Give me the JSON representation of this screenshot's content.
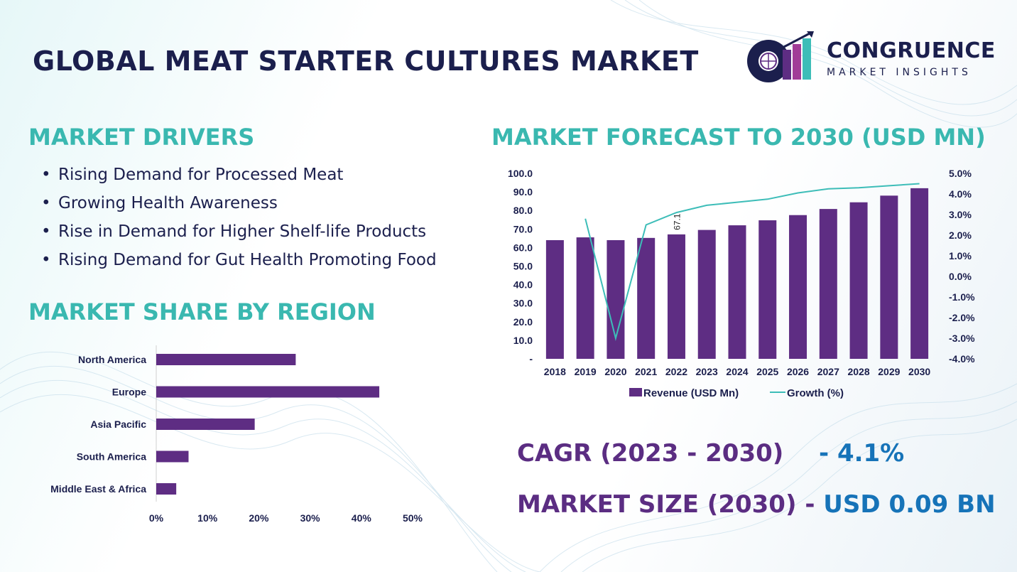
{
  "header": {
    "title": "GLOBAL MEAT STARTER CULTURES MARKET",
    "logo": {
      "name": "CONGRUENCE",
      "tagline": "MARKET INSIGHTS"
    }
  },
  "drivers": {
    "title": "MARKET DRIVERS",
    "items": [
      "Rising Demand for Processed Meat",
      "Growing Health Awareness",
      "Rise in Demand for Higher Shelf-life Products",
      "Rising Demand for Gut Health Promoting Food"
    ]
  },
  "share": {
    "title": "MARKET SHARE BY REGION"
  },
  "forecast": {
    "title": "MARKET FORECAST TO 2030 (USD MN)"
  },
  "kpis": {
    "cagr_label": "CAGR (2023 - 2030)",
    "cagr_value": "- 4.1%",
    "size_label": "MARKET SIZE (2030) -",
    "size_value": "USD 0.09 BN"
  },
  "colors": {
    "bar": "#5e2d83",
    "line": "#3dbdb8",
    "teal_heading": "#3ab8b0",
    "navy": "#1b1f4d",
    "kpi_value": "#1673b8"
  },
  "chart_data": [
    {
      "type": "bar",
      "orientation": "horizontal",
      "categories": [
        "North America",
        "Europe",
        "Asia Pacific",
        "South America",
        "Middle East & Africa"
      ],
      "values": [
        27.2,
        43.5,
        19.2,
        6.3,
        3.9
      ],
      "xticks": [
        "0%",
        "10%",
        "20%",
        "30%",
        "40%",
        "50%"
      ],
      "xlim": [
        0,
        50
      ],
      "grid": false
    },
    {
      "type": "bar+line",
      "categories": [
        "2018",
        "2019",
        "2020",
        "2021",
        "2022",
        "2023",
        "2024",
        "2025",
        "2026",
        "2027",
        "2028",
        "2029",
        "2030"
      ],
      "series": [
        {
          "name": "Revenue (USD Mn)",
          "type": "bar",
          "axis": "left",
          "values": [
            64.0,
            65.5,
            64.0,
            65.2,
            67.1,
            69.5,
            72.0,
            74.7,
            77.5,
            80.8,
            84.4,
            88.0,
            92.0
          ]
        },
        {
          "name": "Growth (%)",
          "type": "line",
          "axis": "right",
          "values": [
            null,
            2.8,
            -3.0,
            2.5,
            3.1,
            3.45,
            3.6,
            3.75,
            4.05,
            4.25,
            4.3,
            4.4,
            4.5
          ]
        }
      ],
      "data_labels": [
        {
          "category": "2022",
          "text": "67.1"
        }
      ],
      "yticks_left": [
        "-",
        "10.0",
        "20.0",
        "30.0",
        "40.0",
        "50.0",
        "60.0",
        "70.0",
        "80.0",
        "90.0",
        "100.0"
      ],
      "yticks_right": [
        "-4.0%",
        "-3.0%",
        "-2.0%",
        "-1.0%",
        "0.0%",
        "1.0%",
        "2.0%",
        "3.0%",
        "4.0%",
        "5.0%"
      ],
      "ylim_left": [
        0,
        100
      ],
      "ylim_right": [
        -4,
        5
      ],
      "legend": "bottom",
      "grid": false
    }
  ]
}
